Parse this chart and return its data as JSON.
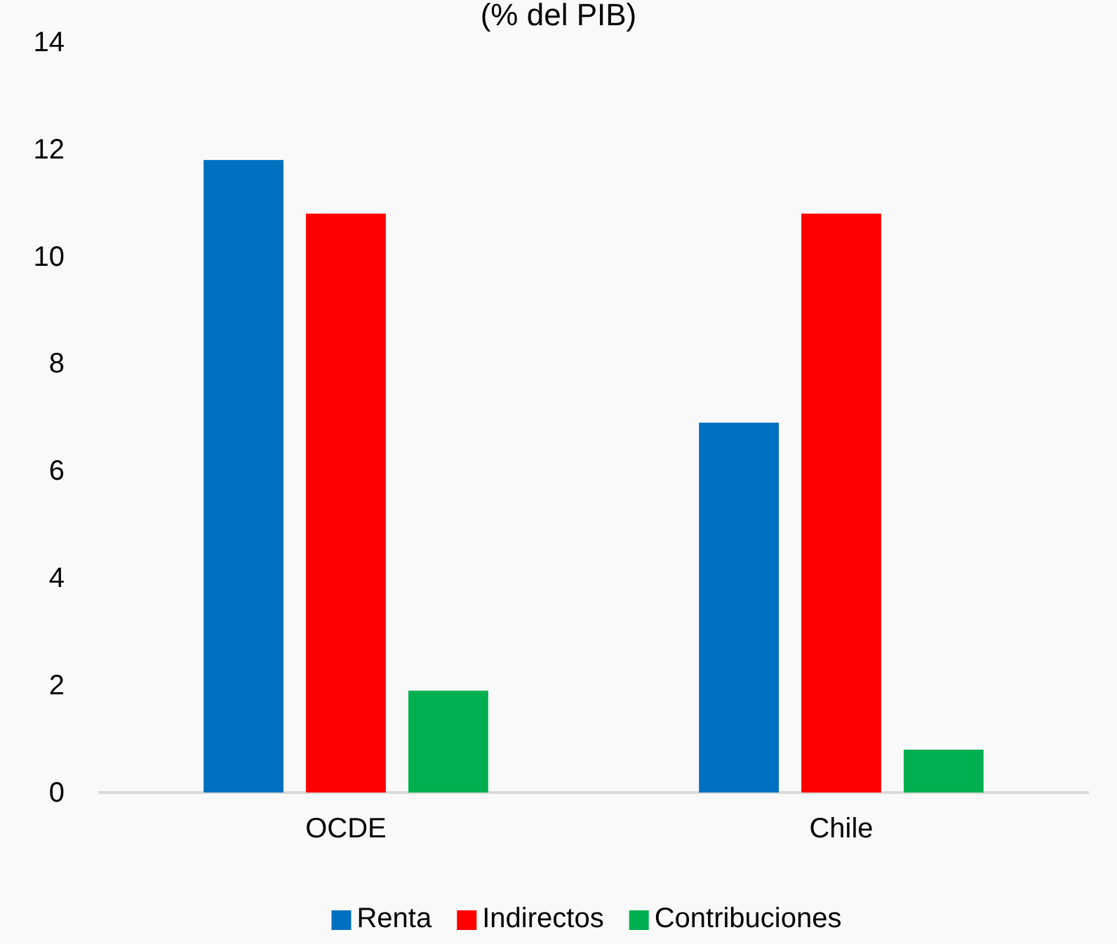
{
  "chart_data": {
    "type": "bar",
    "title": "(% del PIB)",
    "categories": [
      "OCDE",
      "Chile"
    ],
    "series": [
      {
        "name": "Renta",
        "color": "#0070c0",
        "values": [
          11.8,
          6.9
        ]
      },
      {
        "name": "Indirectos",
        "color": "#ff0000",
        "values": [
          10.8,
          10.8
        ]
      },
      {
        "name": "Contribuciones",
        "color": "#00b050",
        "values": [
          1.9,
          0.8
        ]
      }
    ],
    "ylim": [
      0,
      14
    ],
    "yticks": [
      0,
      2,
      4,
      6,
      8,
      10,
      12,
      14
    ],
    "grid": false,
    "legend": "bottom"
  }
}
